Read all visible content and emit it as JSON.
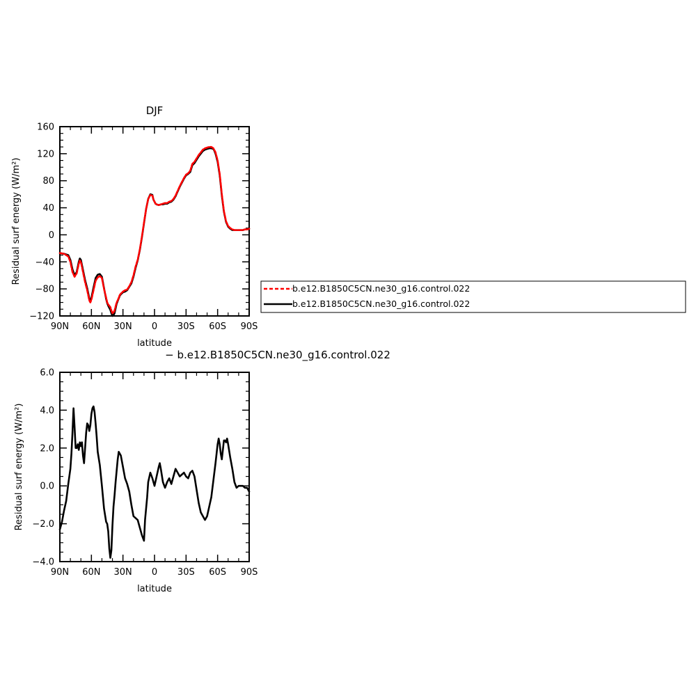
{
  "chart_data": [
    {
      "type": "line",
      "title": "DJF",
      "xlabel": "latitude",
      "ylabel": "Residual surf energy (W/m²)",
      "xlim": [
        90,
        -90
      ],
      "ylim": [
        -120,
        160
      ],
      "xticks": [
        90,
        60,
        30,
        0,
        -30,
        -60,
        -90
      ],
      "xtick_labels": [
        "90N",
        "60N",
        "30N",
        "0",
        "30S",
        "60S",
        "90S"
      ],
      "yticks": [
        -120,
        -80,
        -40,
        0,
        40,
        80,
        120,
        160
      ],
      "ytick_labels": [
        "−120",
        "−80",
        "−40",
        "0",
        "40",
        "80",
        "120",
        "160"
      ],
      "legend_placement": "right",
      "series": [
        {
          "name": "b.e12.B1850C5CN.ne30_g16.control.022",
          "color": "#ff0000",
          "dash": "dashed",
          "x": [
            90,
            86,
            82,
            80,
            78,
            76,
            74,
            72,
            71,
            70,
            68,
            66,
            64,
            62,
            61,
            60,
            58,
            56,
            54,
            52,
            50,
            48,
            46,
            45,
            44,
            42,
            41,
            40,
            39,
            38,
            37,
            36,
            35,
            34,
            33,
            32,
            30,
            28,
            26,
            24,
            22,
            20,
            18,
            16,
            14,
            12,
            10,
            8,
            6,
            4,
            2,
            1,
            0,
            -1,
            -2,
            -4,
            -6,
            -8,
            -10,
            -12,
            -14,
            -16,
            -18,
            -20,
            -22,
            -24,
            -26,
            -28,
            -30,
            -32,
            -34,
            -35,
            -36,
            -38,
            -40,
            -42,
            -44,
            -46,
            -48,
            -50,
            -52,
            -54,
            -56,
            -57,
            -58,
            -60,
            -62,
            -64,
            -66,
            -68,
            -70,
            -72,
            -74,
            -76,
            -78,
            -80,
            -82,
            -84,
            -86,
            -88,
            -90
          ],
          "y": [
            -27,
            -28,
            -32,
            -40,
            -55,
            -62,
            -57,
            -43,
            -38,
            -40,
            -55,
            -70,
            -82,
            -97,
            -100,
            -96,
            -82,
            -68,
            -63,
            -61,
            -64,
            -80,
            -93,
            -100,
            -103,
            -107,
            -112,
            -116,
            -115,
            -112,
            -106,
            -100,
            -97,
            -93,
            -89,
            -87,
            -84,
            -82,
            -81,
            -76,
            -70,
            -60,
            -47,
            -37,
            -22,
            -3,
            18,
            38,
            53,
            59,
            58,
            52,
            49,
            46,
            45,
            44,
            45,
            46,
            47,
            47,
            49,
            50,
            53,
            58,
            65,
            72,
            78,
            84,
            89,
            91,
            95,
            100,
            105,
            108,
            113,
            118,
            122,
            126,
            128,
            129,
            130,
            130,
            128,
            125,
            122,
            110,
            90,
            60,
            35,
            20,
            13,
            10,
            8,
            7,
            7,
            7,
            7,
            7,
            8,
            8,
            9
          ]
        },
        {
          "name": "b.e12.B1850C5CN.ne30_g16.control.022",
          "color": "#000000",
          "dash": "solid",
          "x": [
            90,
            86,
            82,
            80,
            78,
            76,
            74,
            72,
            71,
            70,
            68,
            66,
            64,
            62,
            61,
            60,
            58,
            56,
            54,
            52,
            50,
            48,
            46,
            45,
            44,
            42,
            41,
            40,
            39,
            38,
            37,
            36,
            35,
            34,
            33,
            32,
            30,
            28,
            26,
            24,
            22,
            20,
            18,
            16,
            14,
            12,
            10,
            8,
            6,
            4,
            2,
            1,
            0,
            -1,
            -2,
            -4,
            -6,
            -8,
            -10,
            -12,
            -14,
            -16,
            -18,
            -20,
            -22,
            -24,
            -26,
            -28,
            -30,
            -32,
            -34,
            -35,
            -36,
            -38,
            -40,
            -42,
            -44,
            -46,
            -48,
            -50,
            -52,
            -54,
            -56,
            -57,
            -58,
            -60,
            -62,
            -64,
            -66,
            -68,
            -70,
            -72,
            -74,
            -76,
            -78,
            -80,
            -82,
            -84,
            -86,
            -88,
            -90
          ],
          "y": [
            -27,
            -28,
            -30,
            -37,
            -51,
            -60,
            -55,
            -40,
            -35,
            -37,
            -52,
            -67,
            -79,
            -94,
            -97,
            -93,
            -78,
            -64,
            -59,
            -58,
            -62,
            -79,
            -95,
            -101,
            -105,
            -111,
            -116,
            -120,
            -119,
            -116,
            -109,
            -102,
            -98,
            -94,
            -90,
            -88,
            -85,
            -84,
            -82,
            -77,
            -72,
            -62,
            -49,
            -38,
            -23,
            -4,
            17,
            38,
            53,
            60,
            59,
            52,
            49,
            46,
            45,
            44,
            45,
            45,
            46,
            46,
            48,
            49,
            52,
            57,
            64,
            71,
            77,
            83,
            88,
            90,
            93,
            98,
            103,
            106,
            111,
            116,
            120,
            124,
            126,
            127,
            128,
            128,
            127,
            124,
            120,
            108,
            88,
            58,
            34,
            19,
            12,
            9,
            7,
            7,
            7,
            7,
            7,
            7,
            8,
            8,
            9
          ]
        }
      ]
    },
    {
      "type": "line",
      "title": "− b.e12.B1850C5CN.ne30_g16.control.022",
      "xlabel": "latitude",
      "ylabel": "Residual surf energy (W/m²)",
      "xlim": [
        90,
        -90
      ],
      "ylim": [
        -4,
        6
      ],
      "xticks": [
        90,
        60,
        30,
        0,
        -30,
        -60,
        -90
      ],
      "xtick_labels": [
        "90N",
        "60N",
        "30N",
        "0",
        "30S",
        "60S",
        "90S"
      ],
      "yticks": [
        -4,
        -2,
        0,
        2,
        4,
        6
      ],
      "ytick_labels": [
        "−4.0",
        "−2.0",
        "0.0",
        "2.0",
        "4.0",
        "6.0"
      ],
      "series": [
        {
          "color": "#000000",
          "dash": "solid",
          "x": [
            90,
            88,
            86,
            84,
            82,
            80,
            79,
            78,
            77,
            76,
            75,
            74,
            73,
            72,
            71,
            70,
            69,
            68,
            67,
            66,
            65,
            64,
            63,
            62,
            61,
            60,
            59,
            58,
            57,
            56,
            55,
            54,
            52,
            50,
            48,
            46,
            45,
            44,
            43,
            42,
            41,
            40,
            39,
            38,
            37,
            36,
            35,
            34,
            32,
            30,
            28,
            26,
            24,
            22,
            20,
            18,
            16,
            14,
            12,
            10,
            9,
            8,
            7,
            6,
            4,
            2,
            1,
            0,
            -2,
            -4,
            -5,
            -6,
            -8,
            -10,
            -12,
            -14,
            -16,
            -18,
            -20,
            -22,
            -24,
            -26,
            -28,
            -30,
            -32,
            -34,
            -36,
            -38,
            -40,
            -42,
            -44,
            -46,
            -48,
            -50,
            -52,
            -54,
            -56,
            -58,
            -59,
            -60,
            -61,
            -62,
            -63,
            -64,
            -65,
            -66,
            -67,
            -68,
            -69,
            -70,
            -72,
            -74,
            -76,
            -78,
            -80,
            -82,
            -84,
            -86,
            -88,
            -90
          ],
          "y": [
            -2.3,
            -1.9,
            -1.3,
            -0.8,
            0.1,
            0.9,
            1.7,
            2.8,
            4.1,
            3.1,
            2.0,
            2.0,
            2.2,
            1.9,
            2.3,
            2.1,
            2.3,
            1.6,
            1.2,
            2.0,
            2.8,
            3.3,
            3.2,
            2.9,
            3.2,
            3.8,
            4.1,
            4.2,
            3.9,
            3.3,
            2.6,
            1.8,
            1.1,
            0.0,
            -1.2,
            -1.9,
            -2.0,
            -2.4,
            -3.3,
            -3.8,
            -3.4,
            -2.1,
            -1.1,
            -0.5,
            0.2,
            0.8,
            1.4,
            1.8,
            1.6,
            1.0,
            0.4,
            0.1,
            -0.3,
            -1.0,
            -1.6,
            -1.7,
            -1.8,
            -2.2,
            -2.6,
            -2.9,
            -1.8,
            -1.2,
            -0.6,
            0.2,
            0.7,
            0.4,
            0.2,
            0.0,
            0.5,
            1.0,
            1.2,
            0.9,
            0.2,
            -0.1,
            0.2,
            0.4,
            0.1,
            0.5,
            0.9,
            0.7,
            0.5,
            0.6,
            0.7,
            0.5,
            0.4,
            0.7,
            0.8,
            0.5,
            -0.2,
            -0.9,
            -1.4,
            -1.6,
            -1.8,
            -1.6,
            -1.1,
            -0.6,
            0.3,
            1.2,
            1.7,
            2.2,
            2.5,
            2.2,
            1.7,
            1.4,
            1.9,
            2.4,
            2.4,
            2.3,
            2.5,
            2.2,
            1.5,
            0.9,
            0.2,
            -0.1,
            0.0,
            0.0,
            0.0,
            -0.1,
            -0.1,
            -0.3
          ]
        }
      ]
    }
  ]
}
